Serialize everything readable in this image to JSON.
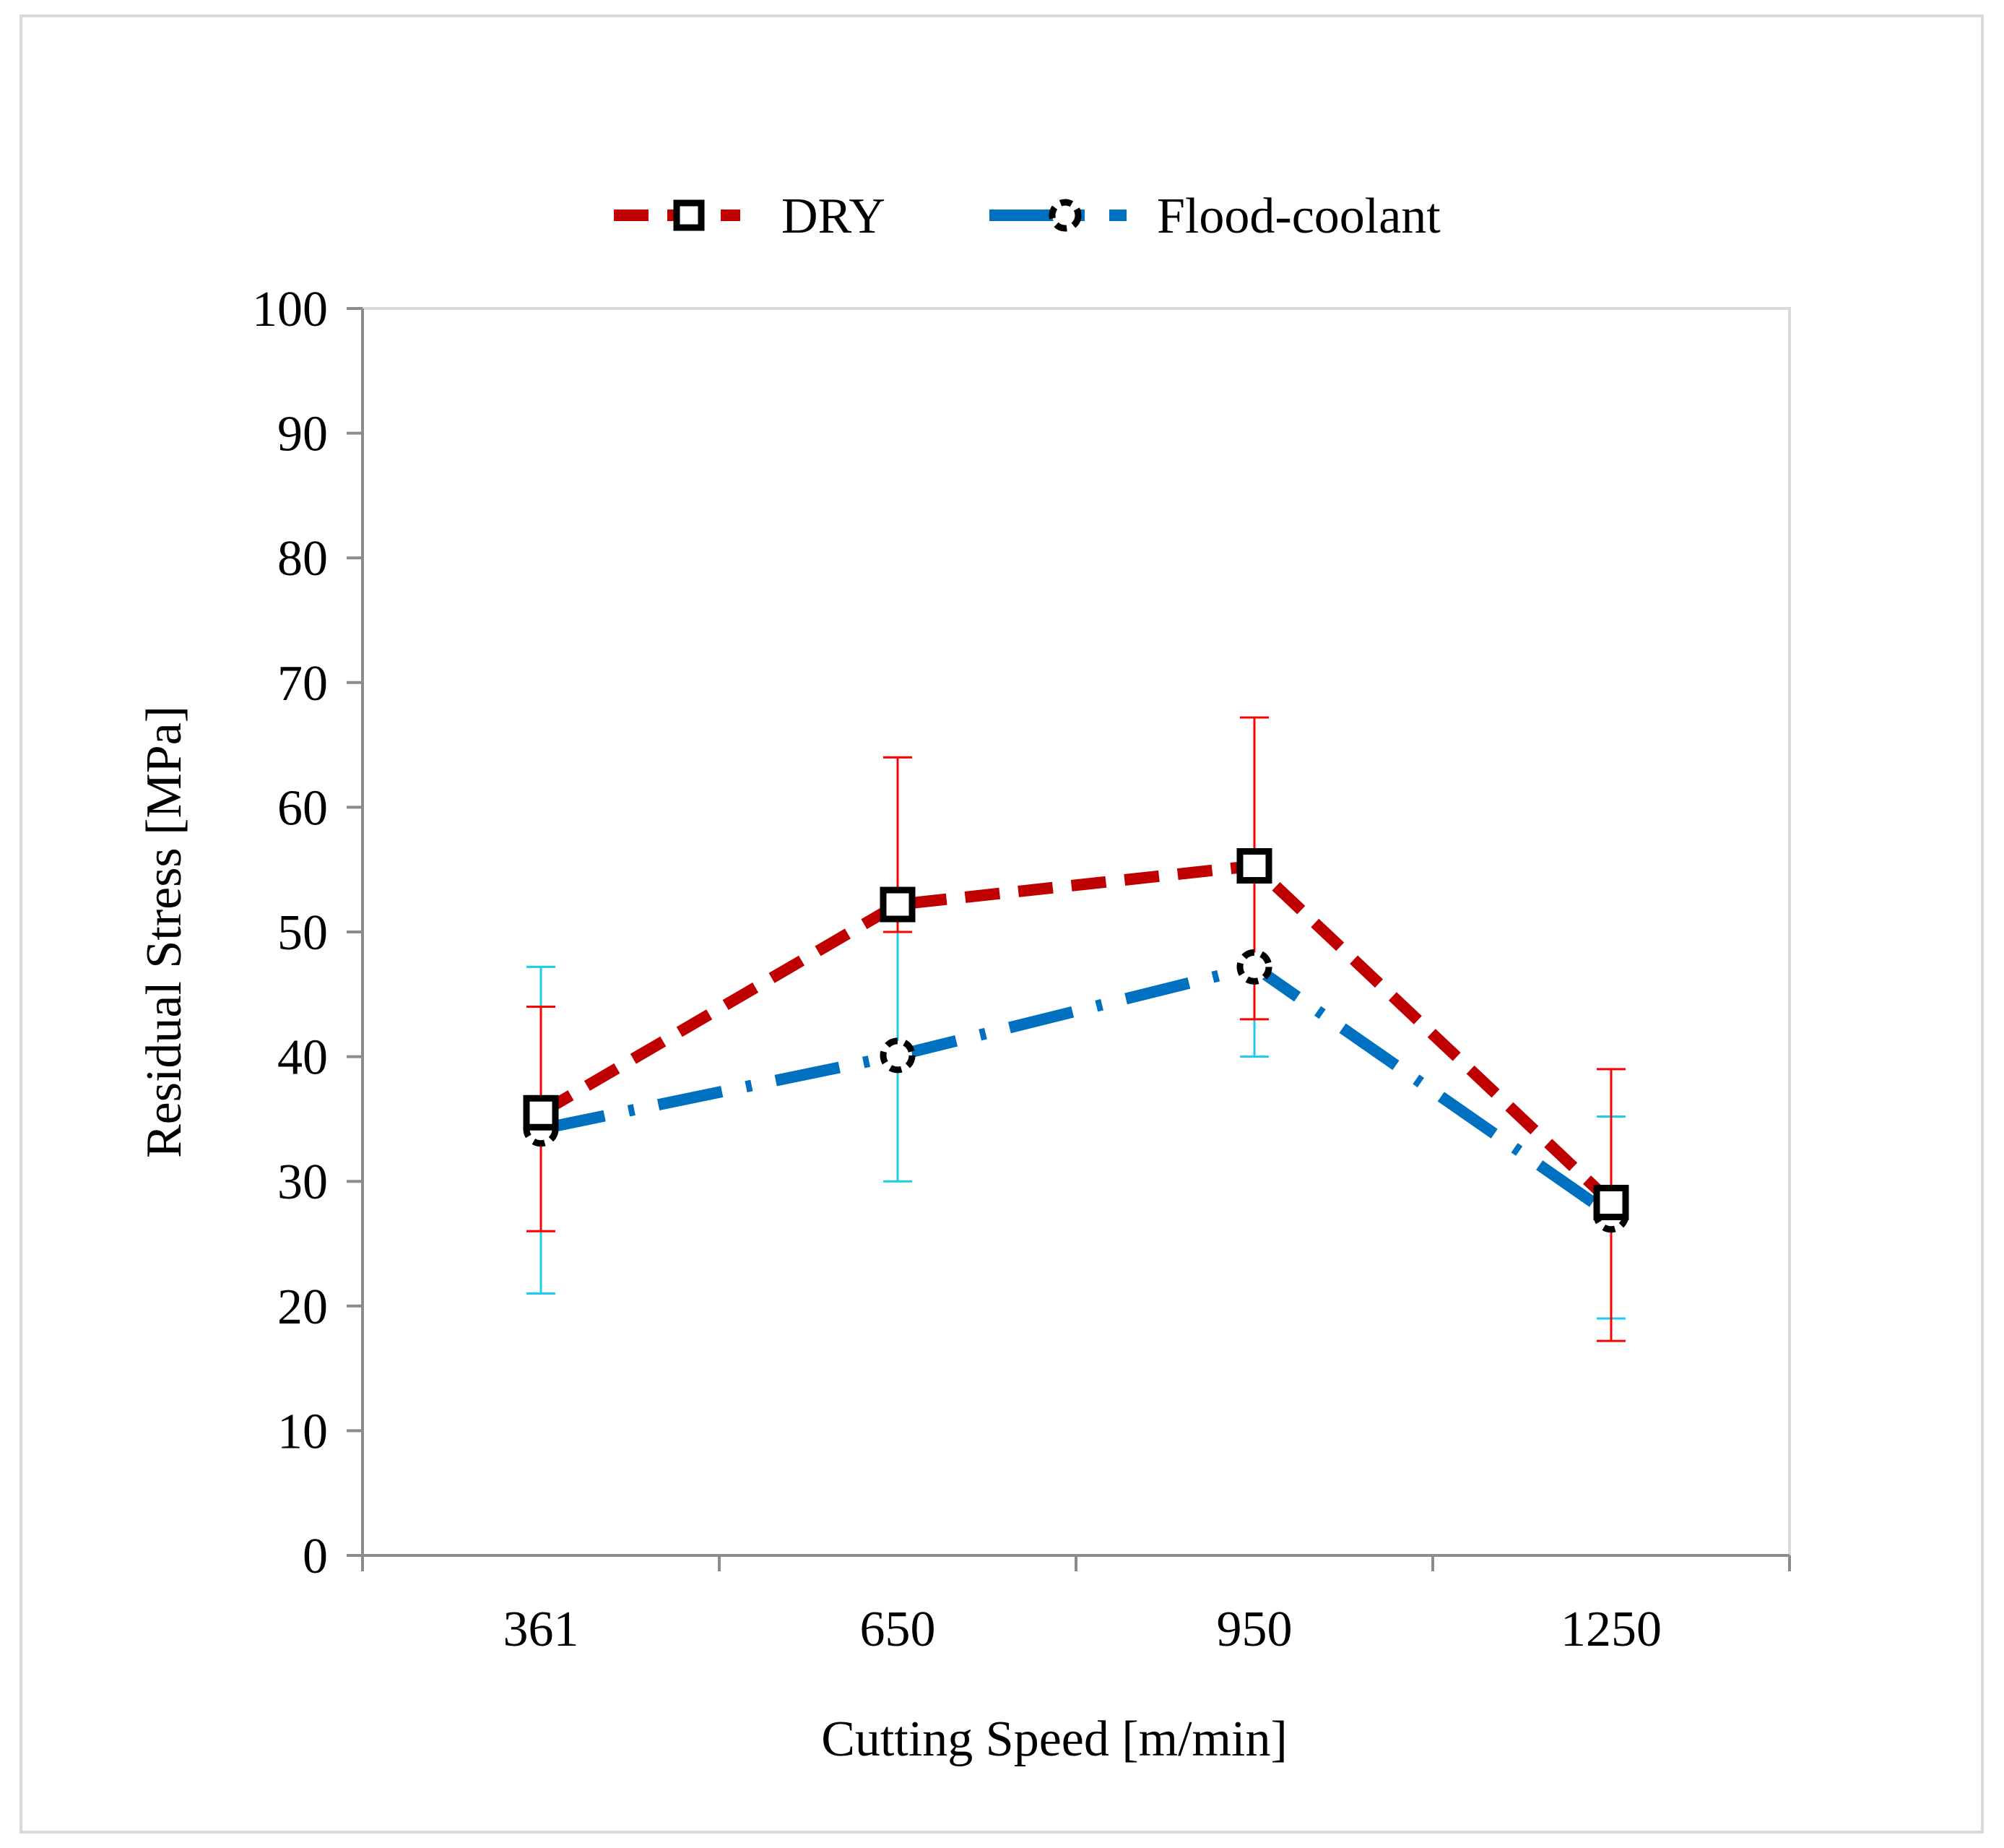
{
  "chart_data": {
    "type": "line",
    "title": "",
    "xlabel": "Cutting Speed [m/min]",
    "ylabel": "Residual Stress [MPa]",
    "categories": [
      "361",
      "650",
      "950",
      "1250"
    ],
    "ylim": [
      0,
      100
    ],
    "yticks": [
      "0",
      "10",
      "20",
      "30",
      "40",
      "50",
      "60",
      "70",
      "80",
      "90",
      "100"
    ],
    "grid": false,
    "legend_position": "top-center",
    "series": [
      {
        "name": "DRY",
        "color": "#c00000",
        "line_style": "dashed",
        "marker": "square",
        "values": [
          35.5,
          52.2,
          55.3,
          28.3
        ],
        "error_low": [
          26,
          50,
          43,
          17.2
        ],
        "error_high": [
          44,
          64,
          67.2,
          39
        ],
        "error_color": "#ff0000"
      },
      {
        "name": "Flood-coolant",
        "color": "#0070c0",
        "line_style": "dash-dot",
        "marker": "dashed-circle",
        "values": [
          34.2,
          40.1,
          47.2,
          27.3
        ],
        "error_low": [
          21,
          30,
          40,
          19
        ],
        "error_high": [
          47.2,
          50,
          55,
          35.2
        ],
        "error_color": "#1ecbf0"
      }
    ]
  }
}
